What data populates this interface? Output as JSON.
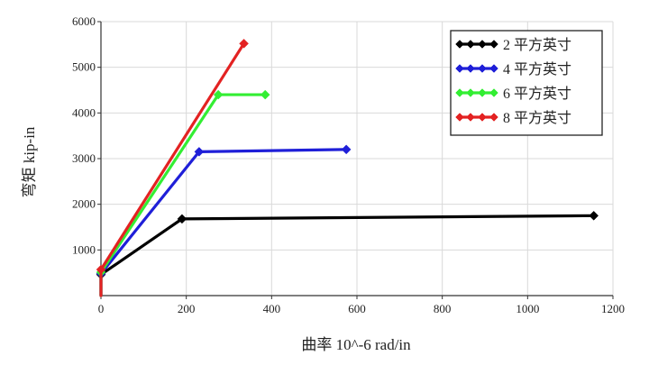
{
  "chart_data": {
    "type": "line",
    "title": "",
    "xlabel": "曲率 10^-6 rad/in",
    "ylabel": "弯矩 kip-in",
    "xlim": [
      0,
      1200
    ],
    "ylim": [
      0,
      6000
    ],
    "x_ticks": [
      "0",
      "200",
      "400",
      "600",
      "800",
      "1000",
      "1200"
    ],
    "y_ticks": [
      "1000",
      "2000",
      "3000",
      "4000",
      "5000",
      "6000"
    ],
    "grid": true,
    "legend_position": "top-right",
    "series": [
      {
        "name": "2 平方英寸",
        "color": "#000000",
        "x": [
          0,
          0,
          190,
          1155
        ],
        "y": [
          0,
          460,
          1680,
          1750
        ]
      },
      {
        "name": "4 平方英寸",
        "color": "#1f1fd8",
        "x": [
          0,
          0,
          230,
          575
        ],
        "y": [
          0,
          480,
          3150,
          3200
        ]
      },
      {
        "name": "6 平方英寸",
        "color": "#33ee33",
        "x": [
          0,
          0,
          275,
          385
        ],
        "y": [
          0,
          510,
          4400,
          4400
        ]
      },
      {
        "name": "8 平方英寸",
        "color": "#e32222",
        "x": [
          0,
          0,
          335
        ],
        "y": [
          0,
          570,
          5520
        ]
      }
    ]
  }
}
